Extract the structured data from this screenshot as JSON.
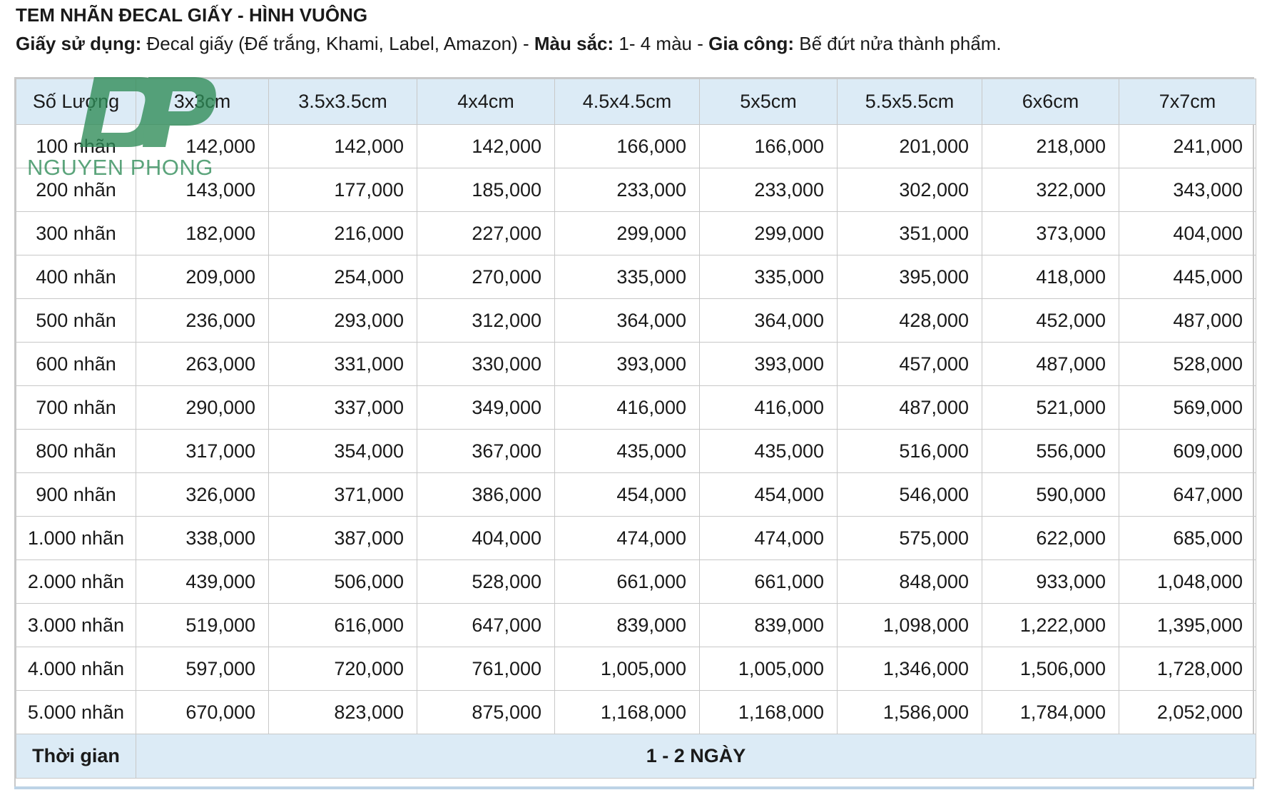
{
  "title": "TEM NHÃN ĐECAL GIẤY - HÌNH VUÔNG",
  "subtitle": {
    "paper_label": "Giấy sử dụng:",
    "paper_value": " Đecal giấy (Đế trắng, Khami, Label, Amazon) - ",
    "color_label": "Màu sắc:",
    "color_value": "  1- 4 màu - ",
    "process_label": "Gia công:",
    "process_value": " Bế đứt nửa thành phẩm."
  },
  "watermark": {
    "monogram": "DP",
    "brand": "NGUYEN PHONG",
    "color": "#2e8b57"
  },
  "colors": {
    "header_bg": "#dcebf6",
    "border": "#c8c8c8"
  },
  "table": {
    "headers": [
      "Số Lượng",
      "3x3cm",
      "3.5x3.5cm",
      "4x4cm",
      "4.5x4.5cm",
      "5x5cm",
      "5.5x5.5cm",
      "6x6cm",
      "7x7cm"
    ],
    "rows": [
      [
        "100 nhãn",
        "142,000",
        "142,000",
        "142,000",
        "166,000",
        "166,000",
        "201,000",
        "218,000",
        "241,000"
      ],
      [
        "200 nhãn",
        "143,000",
        "177,000",
        "185,000",
        "233,000",
        "233,000",
        "302,000",
        "322,000",
        "343,000"
      ],
      [
        "300 nhãn",
        "182,000",
        "216,000",
        "227,000",
        "299,000",
        "299,000",
        "351,000",
        "373,000",
        "404,000"
      ],
      [
        "400 nhãn",
        "209,000",
        "254,000",
        "270,000",
        "335,000",
        "335,000",
        "395,000",
        "418,000",
        "445,000"
      ],
      [
        "500 nhãn",
        "236,000",
        "293,000",
        "312,000",
        "364,000",
        "364,000",
        "428,000",
        "452,000",
        "487,000"
      ],
      [
        "600 nhãn",
        "263,000",
        "331,000",
        "330,000",
        "393,000",
        "393,000",
        "457,000",
        "487,000",
        "528,000"
      ],
      [
        "700 nhãn",
        "290,000",
        "337,000",
        "349,000",
        "416,000",
        "416,000",
        "487,000",
        "521,000",
        "569,000"
      ],
      [
        "800 nhãn",
        "317,000",
        "354,000",
        "367,000",
        "435,000",
        "435,000",
        "516,000",
        "556,000",
        "609,000"
      ],
      [
        "900 nhãn",
        "326,000",
        "371,000",
        "386,000",
        "454,000",
        "454,000",
        "546,000",
        "590,000",
        "647,000"
      ],
      [
        "1.000 nhãn",
        "338,000",
        "387,000",
        "404,000",
        "474,000",
        "474,000",
        "575,000",
        "622,000",
        "685,000"
      ],
      [
        "2.000 nhãn",
        "439,000",
        "506,000",
        "528,000",
        "661,000",
        "661,000",
        "848,000",
        "933,000",
        "1,048,000"
      ],
      [
        "3.000 nhãn",
        "519,000",
        "616,000",
        "647,000",
        "839,000",
        "839,000",
        "1,098,000",
        "1,222,000",
        "1,395,000"
      ],
      [
        "4.000 nhãn",
        "597,000",
        "720,000",
        "761,000",
        "1,005,000",
        "1,005,000",
        "1,346,000",
        "1,506,000",
        "1,728,000"
      ],
      [
        "5.000 nhãn",
        "670,000",
        "823,000",
        "875,000",
        "1,168,000",
        "1,168,000",
        "1,586,000",
        "1,784,000",
        "2,052,000"
      ]
    ],
    "footer": {
      "label": "Thời gian",
      "value": "1 - 2 NGÀY"
    }
  }
}
